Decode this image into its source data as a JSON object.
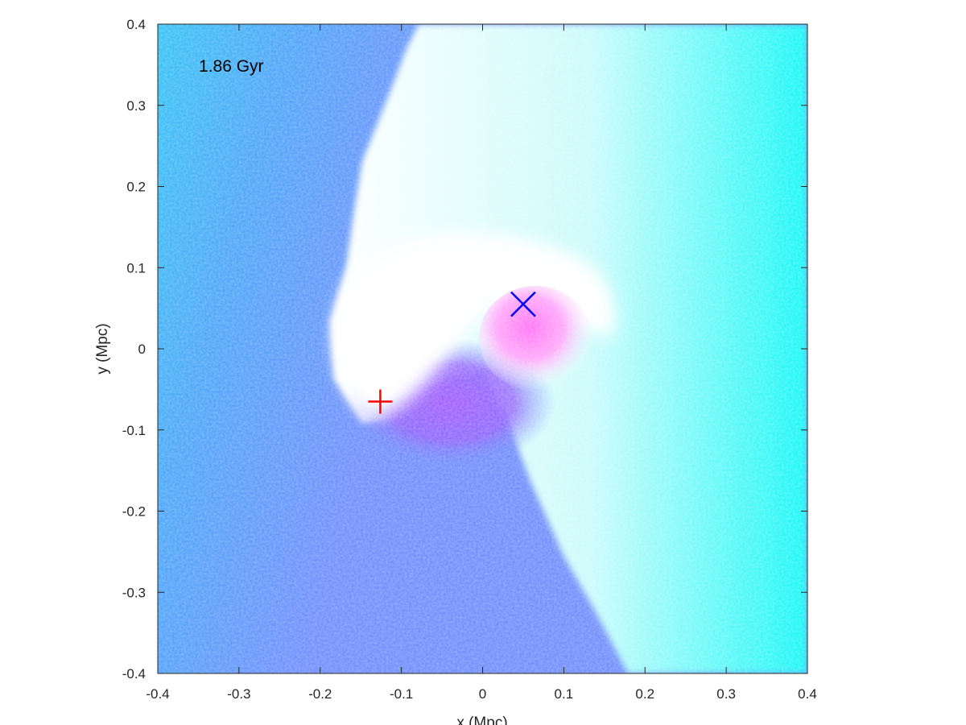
{
  "chart_data": {
    "type": "heatmap",
    "title": "",
    "annotation": "1.86 Gyr",
    "xlabel": "x (Mpc)",
    "ylabel": "y (Mpc)",
    "xlim": [
      -0.4,
      0.4
    ],
    "ylim": [
      -0.4,
      0.4
    ],
    "xticks": [
      -0.4,
      -0.3,
      -0.2,
      -0.1,
      0,
      0.1,
      0.2,
      0.3,
      0.4
    ],
    "yticks": [
      -0.4,
      -0.3,
      -0.2,
      -0.1,
      0,
      0.1,
      0.2,
      0.3,
      0.4
    ],
    "xtick_labels": [
      "-0.4",
      "-0.3",
      "-0.2",
      "-0.1",
      "0",
      "0.1",
      "0.2",
      "0.3",
      "0.4"
    ],
    "ytick_labels": [
      "-0.4",
      "-0.3",
      "-0.2",
      "-0.1",
      "0",
      "0.1",
      "0.2",
      "0.3",
      "0.4"
    ],
    "colors": {
      "background_cyan": "#34c3f4",
      "field_blue": "#6f8dfb",
      "core_violet": "#a35cfd",
      "pink_core": "#ff8ef7",
      "bright": "#ffffff",
      "outer_cyan": "#14f7f6"
    },
    "markers": [
      {
        "name": "plus",
        "shape": "plus",
        "x": -0.126,
        "y": -0.065,
        "color": "#ff0000"
      },
      {
        "name": "cross",
        "shape": "x",
        "x": 0.05,
        "y": 0.055,
        "color": "#0000ff"
      }
    ],
    "grid": false
  }
}
